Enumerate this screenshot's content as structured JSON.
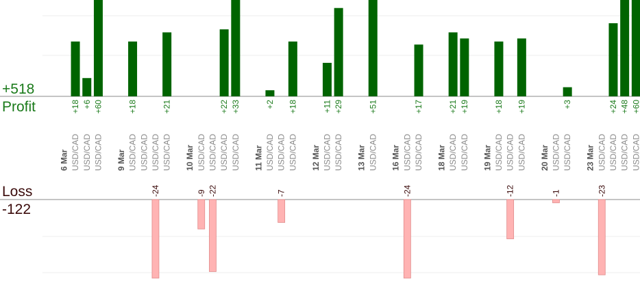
{
  "summary": {
    "profit_total": "+518",
    "profit_label": "Profit",
    "loss_label": "Loss",
    "loss_total": "-122"
  },
  "colors": {
    "profit_bar": "#006400",
    "profit_text": "#1a7a1a",
    "loss_bar": "#ffb3b3",
    "loss_bar_edge": "#e08a8a",
    "loss_text": "#3a0a0a",
    "axis": "#888888",
    "grid": "#eeeeee"
  },
  "chart_data": {
    "type": "bar",
    "columns": [
      {
        "label": "6 Mar",
        "kind": "date"
      },
      {
        "label": "USD/CAD",
        "kind": "trade",
        "profit": 18
      },
      {
        "label": "USD/CAD",
        "kind": "trade",
        "profit": 6
      },
      {
        "label": "USD/CAD",
        "kind": "trade",
        "profit": 60
      },
      {
        "label": "",
        "kind": "spacer"
      },
      {
        "label": "9 Mar",
        "kind": "date"
      },
      {
        "label": "USD/CAD",
        "kind": "trade",
        "profit": 18
      },
      {
        "label": "USD/CAD",
        "kind": "trade"
      },
      {
        "label": "USD/CAD",
        "kind": "trade",
        "loss": -24
      },
      {
        "label": "USD/CAD",
        "kind": "trade",
        "profit": 21
      },
      {
        "label": "",
        "kind": "spacer"
      },
      {
        "label": "10 Mar",
        "kind": "date"
      },
      {
        "label": "USD/CAD",
        "kind": "trade",
        "loss": -9
      },
      {
        "label": "USD/CAD",
        "kind": "trade",
        "loss": -22
      },
      {
        "label": "USD/CAD",
        "kind": "trade",
        "profit": 22
      },
      {
        "label": "USD/CAD",
        "kind": "trade",
        "profit": 33
      },
      {
        "label": "",
        "kind": "spacer"
      },
      {
        "label": "11 Mar",
        "kind": "date"
      },
      {
        "label": "USD/CAD",
        "kind": "trade",
        "profit": 2
      },
      {
        "label": "USD/CAD",
        "kind": "trade",
        "loss": -7
      },
      {
        "label": "USD/CAD",
        "kind": "trade",
        "profit": 18
      },
      {
        "label": "",
        "kind": "spacer"
      },
      {
        "label": "12 Mar",
        "kind": "date"
      },
      {
        "label": "USD/CAD",
        "kind": "trade",
        "profit": 11
      },
      {
        "label": "USD/CAD",
        "kind": "trade",
        "profit": 29
      },
      {
        "label": "",
        "kind": "spacer"
      },
      {
        "label": "13 Mar",
        "kind": "date"
      },
      {
        "label": "USD/CAD",
        "kind": "trade",
        "profit": 51
      },
      {
        "label": "",
        "kind": "spacer"
      },
      {
        "label": "16 Mar",
        "kind": "date"
      },
      {
        "label": "USD/CAD",
        "kind": "trade",
        "loss": -24
      },
      {
        "label": "USD/CAD",
        "kind": "trade",
        "profit": 17
      },
      {
        "label": "",
        "kind": "spacer"
      },
      {
        "label": "18 Mar",
        "kind": "date"
      },
      {
        "label": "USD/CAD",
        "kind": "trade",
        "profit": 21
      },
      {
        "label": "USD/CAD",
        "kind": "trade",
        "profit": 19
      },
      {
        "label": "",
        "kind": "spacer"
      },
      {
        "label": "19 Mar",
        "kind": "date"
      },
      {
        "label": "USD/CAD",
        "kind": "trade",
        "profit": 18
      },
      {
        "label": "USD/CAD",
        "kind": "trade",
        "loss": -12
      },
      {
        "label": "USD/CAD",
        "kind": "trade",
        "profit": 19
      },
      {
        "label": "",
        "kind": "spacer"
      },
      {
        "label": "20 Mar",
        "kind": "date"
      },
      {
        "label": "USD/CAD",
        "kind": "trade",
        "loss": -1
      },
      {
        "label": "USD/CAD",
        "kind": "trade",
        "profit": 3
      },
      {
        "label": "",
        "kind": "spacer"
      },
      {
        "label": "23 Mar",
        "kind": "date"
      },
      {
        "label": "USD/CAD",
        "kind": "trade",
        "loss": -23
      },
      {
        "label": "USD/CAD",
        "kind": "trade",
        "profit": 24
      },
      {
        "label": "USD/CAD",
        "kind": "trade",
        "profit": 48
      },
      {
        "label": "USD/CAD",
        "kind": "trade",
        "profit": 60
      }
    ],
    "profit_scale_max": 24,
    "loss_scale_max": 24,
    "grid": true
  }
}
